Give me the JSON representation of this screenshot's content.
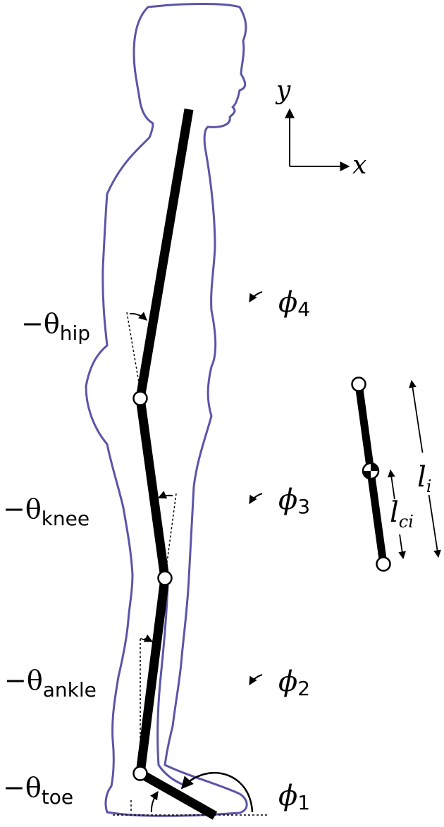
{
  "axes": {
    "x_label": "x",
    "y_label": "y"
  },
  "angles": {
    "hip": {
      "prefix": "−θ",
      "sub": "hip"
    },
    "knee": {
      "prefix": "−θ",
      "sub": "knee"
    },
    "ankle": {
      "prefix": "−θ",
      "sub": "ankle"
    },
    "toe": {
      "prefix": "−θ",
      "sub": "toe"
    }
  },
  "segments": {
    "phi4": {
      "sym": "ϕ",
      "sub": "4"
    },
    "phi3": {
      "sym": "ϕ",
      "sub": "3"
    },
    "phi2": {
      "sym": "ϕ",
      "sub": "2"
    },
    "phi1": {
      "sym": "ϕ",
      "sub": "1"
    }
  },
  "link": {
    "length_sym": "l",
    "length_sub": "i",
    "com_sym": "l",
    "com_sub": "ci"
  },
  "colors": {
    "outline": "#5a55a8",
    "segment": "#000000"
  }
}
